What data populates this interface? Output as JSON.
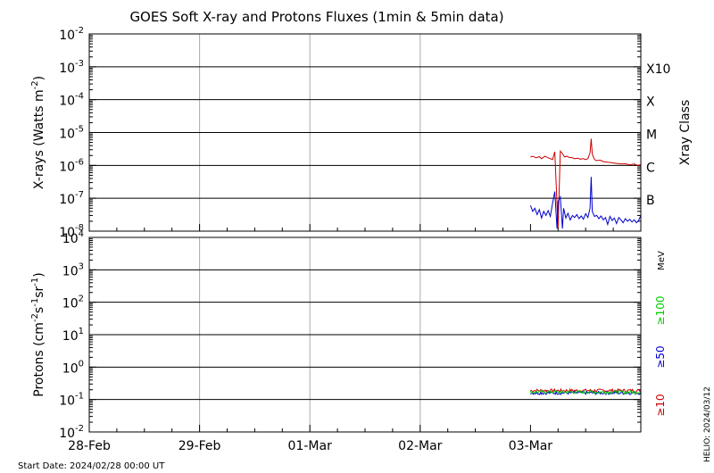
{
  "chart_data": [
    {
      "type": "line",
      "title": "GOES Soft X-ray and Protons Fluxes   (1min & 5min data)",
      "ylabel_html": "X-rays (Watts m<tspan baseline-shift='super' font-size='9'>-2</tspan>)",
      "ylabel_main": "X-rays (Watts m",
      "ylabel_sup": "-2",
      "ylabel_end": ")",
      "y_scale": "log",
      "ylim": [
        1e-08,
        0.01
      ],
      "y_ticks": [
        {
          "base": "10",
          "exp": "-2",
          "value": 0.01
        },
        {
          "base": "10",
          "exp": "-3",
          "value": 0.001
        },
        {
          "base": "10",
          "exp": "-4",
          "value": 0.0001
        },
        {
          "base": "10",
          "exp": "-5",
          "value": 1e-05
        },
        {
          "base": "10",
          "exp": "-6",
          "value": 1e-06
        },
        {
          "base": "10",
          "exp": "-7",
          "value": 1e-07
        },
        {
          "base": "10",
          "exp": "-8",
          "value": 1e-08
        }
      ],
      "right_axis_label": "Xray Class",
      "classes": [
        {
          "label": "X10",
          "value": 0.001
        },
        {
          "label": "X",
          "value": 0.0001
        },
        {
          "label": "M",
          "value": 1e-05
        },
        {
          "label": "C",
          "value": 1e-06
        },
        {
          "label": "B",
          "value": 1e-07
        }
      ],
      "series": [
        {
          "color": "#cc0000",
          "x": [
            4.0,
            4.02,
            4.05,
            4.08,
            4.1,
            4.13,
            4.16,
            4.2,
            4.22,
            4.25,
            4.27,
            4.29,
            4.3,
            4.31,
            4.33,
            4.35,
            4.38,
            4.4,
            4.43,
            4.45,
            4.48,
            4.5,
            4.52,
            4.54,
            4.55,
            4.56,
            4.58,
            4.6,
            4.63,
            4.66,
            4.7,
            4.74,
            4.78,
            4.82,
            4.86,
            4.9,
            4.94,
            4.97,
            5.0
          ],
          "y": [
            1.8e-06,
            1.9e-06,
            1.7e-06,
            1.85e-06,
            1.6e-06,
            1.9e-06,
            1.7e-06,
            1.5e-06,
            2.6e-06,
            1.2e-08,
            2.7e-06,
            2.3e-06,
            2e-06,
            1.8e-06,
            1.9e-06,
            1.75e-06,
            1.7e-06,
            1.6e-06,
            1.65e-06,
            1.55e-06,
            1.6e-06,
            1.5e-06,
            1.6e-06,
            2.4e-06,
            6.5e-06,
            2.2e-06,
            1.5e-06,
            1.4e-06,
            1.45e-06,
            1.3e-06,
            1.25e-06,
            1.2e-06,
            1.15e-06,
            1.1e-06,
            1.12e-06,
            1.05e-06,
            1.1e-06,
            1e-06,
            1.05e-06
          ]
        },
        {
          "color": "#0000cc",
          "x": [
            4.0,
            4.02,
            4.04,
            4.06,
            4.08,
            4.1,
            4.12,
            4.14,
            4.16,
            4.18,
            4.2,
            4.22,
            4.24,
            4.25,
            4.27,
            4.29,
            4.3,
            4.32,
            4.34,
            4.36,
            4.38,
            4.4,
            4.42,
            4.44,
            4.46,
            4.48,
            4.5,
            4.52,
            4.54,
            4.55,
            4.56,
            4.58,
            4.6,
            4.62,
            4.64,
            4.66,
            4.68,
            4.7,
            4.72,
            4.74,
            4.76,
            4.78,
            4.8,
            4.82,
            4.84,
            4.86,
            4.88,
            4.9,
            4.92,
            4.94,
            4.96,
            4.98,
            5.0
          ],
          "y": [
            6e-08,
            4e-08,
            5e-08,
            3.2e-08,
            4.5e-08,
            2.5e-08,
            4e-08,
            3e-08,
            4.2e-08,
            2.8e-08,
            7e-08,
            1.6e-07,
            1.2e-08,
            8e-08,
            1.1e-07,
            1.2e-08,
            5e-08,
            2.5e-08,
            3.5e-08,
            2.2e-08,
            3e-08,
            2.6e-08,
            3.2e-08,
            2.4e-08,
            2.9e-08,
            2.3e-08,
            3.4e-08,
            2.6e-08,
            5e-08,
            4.5e-07,
            4e-08,
            2.8e-08,
            3e-08,
            2.4e-08,
            2.9e-08,
            2.2e-08,
            2.6e-08,
            1.6e-08,
            2.8e-08,
            2.1e-08,
            2.5e-08,
            1.7e-08,
            2.6e-08,
            2.2e-08,
            1.8e-08,
            2.4e-08,
            2e-08,
            2.3e-08,
            1.9e-08,
            2.2e-08,
            1.8e-08,
            2.1e-08,
            3e-08
          ]
        }
      ]
    },
    {
      "type": "line",
      "ylabel_main": "Protons (cm",
      "ylabel_parts": [
        {
          "t": "Protons (cm",
          "sup": false
        },
        {
          "t": "-2",
          "sup": true
        },
        {
          "t": "s",
          "sup": false
        },
        {
          "t": "-1",
          "sup": true
        },
        {
          "t": "sr",
          "sup": false
        },
        {
          "t": "-1",
          "sup": true
        },
        {
          "t": ")",
          "sup": false
        }
      ],
      "y_scale": "log",
      "ylim": [
        0.01,
        10000
      ],
      "y_ticks": [
        {
          "base": "10",
          "exp": "4",
          "value": 10000
        },
        {
          "base": "10",
          "exp": "3",
          "value": 1000
        },
        {
          "base": "10",
          "exp": "2",
          "value": 100
        },
        {
          "base": "10",
          "exp": "1",
          "value": 10
        },
        {
          "base": "10",
          "exp": "0",
          "value": 1
        },
        {
          "base": "10",
          "exp": "-1",
          "value": 0.1
        },
        {
          "base": "10",
          "exp": "-2",
          "value": 0.01
        }
      ],
      "threshold": 10,
      "energy_unit": "MeV",
      "energy_labels": [
        {
          "label": "≥100",
          "color": "#00cc00"
        },
        {
          "label": "≥50",
          "color": "#0000cc"
        },
        {
          "label": "≥10",
          "color": "#cc0000"
        }
      ],
      "series": [
        {
          "color": "#cc0000",
          "x_start": 4.0,
          "x_end": 5.0,
          "level": 0.19
        },
        {
          "color": "#0000cc",
          "x_start": 4.0,
          "x_end": 5.0,
          "level": 0.16
        },
        {
          "color": "#00cc00",
          "x_start": 4.0,
          "x_end": 5.0,
          "level": 0.17
        }
      ]
    }
  ],
  "x_axis": {
    "range": [
      0,
      5
    ],
    "ticks": [
      {
        "value": 0,
        "label": "28-Feb"
      },
      {
        "value": 1,
        "label": "29-Feb"
      },
      {
        "value": 2,
        "label": "01-Mar"
      },
      {
        "value": 3,
        "label": "02-Mar"
      },
      {
        "value": 4,
        "label": "03-Mar"
      }
    ],
    "grid_days": [
      1,
      2,
      3
    ]
  },
  "footer": {
    "start_date": "Start Date: 2024/02/28 00:00 UT",
    "side_stamp": "HELIO: 2024/03/12"
  },
  "colors": {
    "red": "#cc0000",
    "blue": "#0000cc",
    "green": "#00cc00",
    "grid": "#aaaaaa"
  }
}
